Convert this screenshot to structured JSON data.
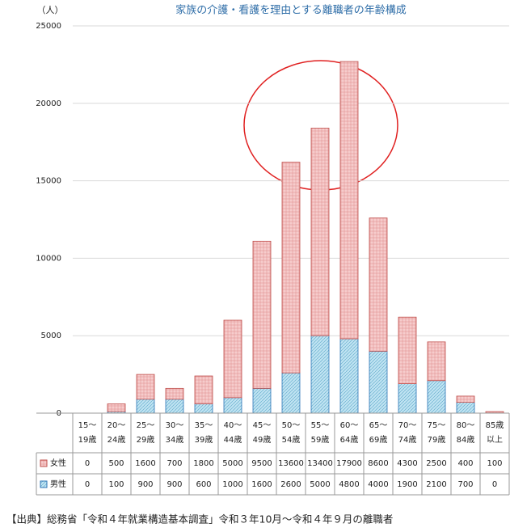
{
  "chart_data": {
    "type": "stacked-bar",
    "title": "家族の介護・看護を理由とする離職者の年齢構成",
    "y_unit": "（人）",
    "source": "【出典】総務省「令和４年就業構造基本調査」令和３年10月～令和４年９月の離職者",
    "categories": [
      "15～\n19歳",
      "20～\n24歳",
      "25～\n29歳",
      "30～\n34歳",
      "35～\n39歳",
      "40～\n44歳",
      "45～\n49歳",
      "50～\n54歳",
      "55～\n59歳",
      "60～\n64歳",
      "65～\n69歳",
      "70～\n74歳",
      "75～\n79歳",
      "80～\n84歳",
      "85歳\n以上"
    ],
    "series": [
      {
        "name": "男性",
        "color": "#bfe3f2",
        "values": [
          0,
          100,
          900,
          900,
          600,
          1000,
          1600,
          2600,
          5000,
          4800,
          4000,
          1900,
          2100,
          700,
          0
        ]
      },
      {
        "name": "女性",
        "color": "#f6cccc",
        "values": [
          0,
          500,
          1600,
          700,
          1800,
          5000,
          9500,
          13600,
          13400,
          17900,
          8600,
          4300,
          2500,
          400,
          100
        ]
      }
    ],
    "ylim": [
      0,
      25000
    ],
    "yticks": [
      0,
      5000,
      10000,
      15000,
      20000,
      25000
    ],
    "grid": true
  }
}
